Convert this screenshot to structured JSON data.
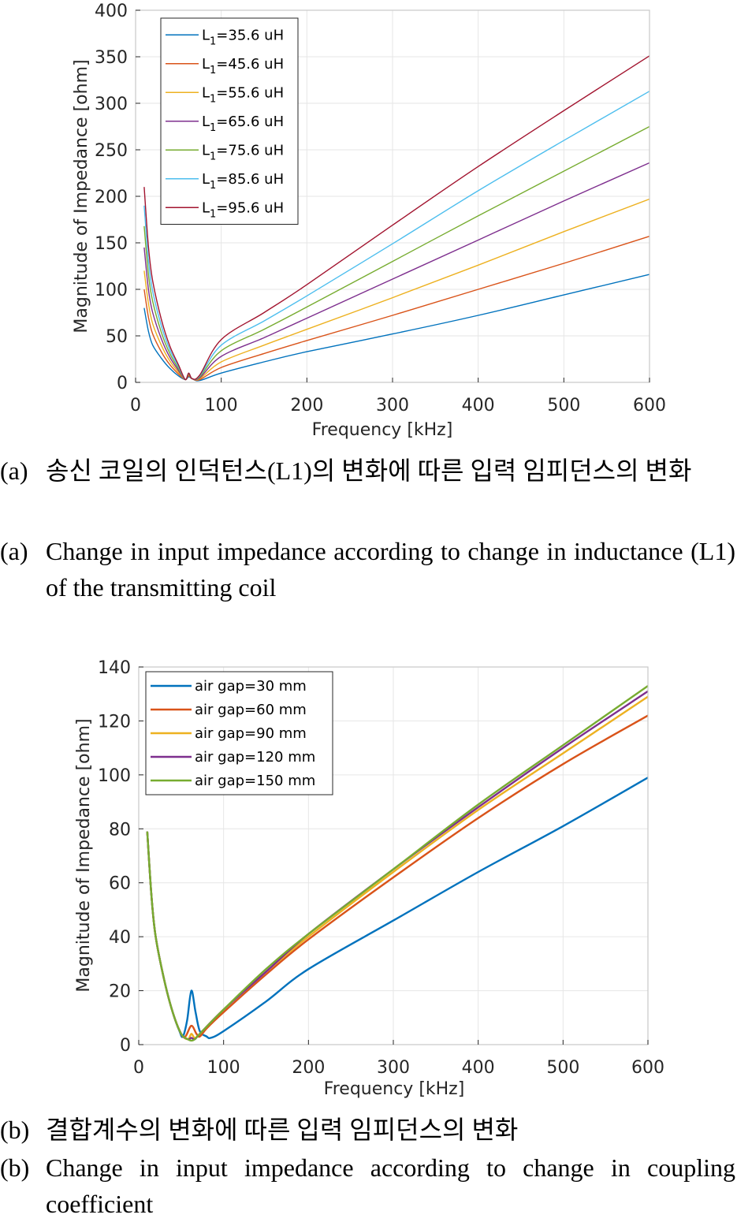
{
  "charts": [
    {
      "chart_data": {
        "type": "line",
        "xlabel": "Frequency [kHz]",
        "ylabel": "Magnitude of Impedance [ohm]",
        "xlim": [
          0,
          600
        ],
        "ylim": [
          0,
          400
        ],
        "xticks": [
          "0",
          "100",
          "200",
          "300",
          "400",
          "500",
          "600"
        ],
        "yticks": [
          "0",
          "50",
          "100",
          "150",
          "200",
          "250",
          "300",
          "350",
          "400"
        ],
        "grid": true,
        "legend_position": "top-left",
        "series": [
          {
            "name_prefix": "L",
            "name_sub": "1",
            "name_suffix": "=35.6 uH",
            "color": "#0072BD",
            "points": [
              [
                10,
                80
              ],
              [
                15,
                55
              ],
              [
                20,
                40
              ],
              [
                30,
                26
              ],
              [
                40,
                15
              ],
              [
                50,
                7
              ],
              [
                58,
                3
              ],
              [
                62,
                6
              ],
              [
                66,
                4
              ],
              [
                75,
                2
              ],
              [
                100,
                10
              ],
              [
                150,
                22
              ],
              [
                200,
                33
              ],
              [
                300,
                52
              ],
              [
                400,
                72
              ],
              [
                500,
                94
              ],
              [
                600,
                116
              ]
            ]
          },
          {
            "name_prefix": "L",
            "name_sub": "1",
            "name_suffix": "=45.6 uH",
            "color": "#D95319",
            "points": [
              [
                10,
                100
              ],
              [
                15,
                70
              ],
              [
                20,
                52
              ],
              [
                30,
                33
              ],
              [
                40,
                19
              ],
              [
                50,
                9
              ],
              [
                58,
                3
              ],
              [
                62,
                7
              ],
              [
                66,
                4
              ],
              [
                75,
                3
              ],
              [
                100,
                16
              ],
              [
                150,
                31
              ],
              [
                200,
                45
              ],
              [
                300,
                72
              ],
              [
                400,
                100
              ],
              [
                500,
                128
              ],
              [
                600,
                157
              ]
            ]
          },
          {
            "name_prefix": "L",
            "name_sub": "1",
            "name_suffix": "=55.6 uH",
            "color": "#EDB120",
            "points": [
              [
                10,
                120
              ],
              [
                15,
                85
              ],
              [
                20,
                63
              ],
              [
                30,
                40
              ],
              [
                40,
                23
              ],
              [
                50,
                11
              ],
              [
                58,
                3
              ],
              [
                62,
                8
              ],
              [
                66,
                4
              ],
              [
                75,
                4
              ],
              [
                100,
                22
              ],
              [
                150,
                40
              ],
              [
                200,
                57
              ],
              [
                300,
                91
              ],
              [
                400,
                126
              ],
              [
                500,
                162
              ],
              [
                600,
                197
              ]
            ]
          },
          {
            "name_prefix": "L",
            "name_sub": "1",
            "name_suffix": "=65.6 uH",
            "color": "#7E2F8E",
            "points": [
              [
                10,
                145
              ],
              [
                15,
                100
              ],
              [
                20,
                75
              ],
              [
                30,
                47
              ],
              [
                40,
                27
              ],
              [
                50,
                13
              ],
              [
                58,
                3
              ],
              [
                62,
                9
              ],
              [
                66,
                4
              ],
              [
                75,
                5
              ],
              [
                100,
                28
              ],
              [
                150,
                48
              ],
              [
                200,
                69
              ],
              [
                300,
                111
              ],
              [
                400,
                153
              ],
              [
                500,
                195
              ],
              [
                600,
                236
              ]
            ]
          },
          {
            "name_prefix": "L",
            "name_sub": "1",
            "name_suffix": "=75.6 uH",
            "color": "#77AC30",
            "points": [
              [
                10,
                168
              ],
              [
                15,
                116
              ],
              [
                20,
                87
              ],
              [
                30,
                54
              ],
              [
                40,
                31
              ],
              [
                50,
                15
              ],
              [
                58,
                3
              ],
              [
                62,
                9
              ],
              [
                66,
                4
              ],
              [
                75,
                6
              ],
              [
                100,
                34
              ],
              [
                150,
                57
              ],
              [
                200,
                81
              ],
              [
                300,
                130
              ],
              [
                400,
                179
              ],
              [
                500,
                227
              ],
              [
                600,
                275
              ]
            ]
          },
          {
            "name_prefix": "L",
            "name_sub": "1",
            "name_suffix": "=85.6 uH",
            "color": "#4DBEEE",
            "points": [
              [
                10,
                190
              ],
              [
                15,
                131
              ],
              [
                20,
                98
              ],
              [
                30,
                61
              ],
              [
                40,
                35
              ],
              [
                50,
                17
              ],
              [
                58,
                3
              ],
              [
                62,
                10
              ],
              [
                66,
                4
              ],
              [
                75,
                7
              ],
              [
                100,
                40
              ],
              [
                150,
                66
              ],
              [
                200,
                93
              ],
              [
                300,
                149
              ],
              [
                400,
                206
              ],
              [
                500,
                260
              ],
              [
                600,
                313
              ]
            ]
          },
          {
            "name_prefix": "L",
            "name_sub": "1",
            "name_suffix": "=95.6 uH",
            "color": "#A2142F",
            "points": [
              [
                10,
                210
              ],
              [
                15,
                146
              ],
              [
                20,
                109
              ],
              [
                30,
                68
              ],
              [
                40,
                39
              ],
              [
                50,
                19
              ],
              [
                58,
                3
              ],
              [
                62,
                10
              ],
              [
                66,
                4
              ],
              [
                75,
                8
              ],
              [
                100,
                46
              ],
              [
                150,
                75
              ],
              [
                200,
                105
              ],
              [
                300,
                169
              ],
              [
                400,
                232
              ],
              [
                500,
                292
              ],
              [
                600,
                351
              ]
            ]
          }
        ]
      },
      "caption_ko_label": "(a)",
      "caption_ko": "송신 코일의 인덕턴스(L1)의 변화에 따른 입력 임피던스의 변화",
      "caption_en_label": "(a)",
      "caption_en": "Change in input impedance according to change in inductance (L1) of the transmitting coil"
    },
    {
      "chart_data": {
        "type": "line",
        "xlabel": "Frequency [kHz]",
        "ylabel": "Magnitude of Impedance [ohm]",
        "xlim": [
          0,
          600
        ],
        "ylim": [
          0,
          140
        ],
        "xticks": [
          "0",
          "100",
          "200",
          "300",
          "400",
          "500",
          "600"
        ],
        "yticks": [
          "0",
          "20",
          "40",
          "60",
          "80",
          "100",
          "120",
          "140"
        ],
        "grid": true,
        "legend_position": "top-left",
        "series": [
          {
            "name": "air gap=30 mm",
            "color": "#0072BD",
            "points": [
              [
                10,
                79
              ],
              [
                15,
                55
              ],
              [
                20,
                40
              ],
              [
                30,
                24
              ],
              [
                40,
                12
              ],
              [
                48,
                5
              ],
              [
                52,
                3
              ],
              [
                57,
                9
              ],
              [
                62,
                20
              ],
              [
                67,
                12
              ],
              [
                72,
                5
              ],
              [
                80,
                3
              ],
              [
                85,
                2.5
              ],
              [
                100,
                5
              ],
              [
                150,
                16
              ],
              [
                200,
                28
              ],
              [
                300,
                46
              ],
              [
                400,
                64
              ],
              [
                500,
                81
              ],
              [
                600,
                99
              ]
            ]
          },
          {
            "name": "air gap=60 mm",
            "color": "#D95319",
            "points": [
              [
                10,
                79
              ],
              [
                15,
                55
              ],
              [
                20,
                40
              ],
              [
                30,
                24
              ],
              [
                40,
                12
              ],
              [
                50,
                4
              ],
              [
                55,
                3
              ],
              [
                62,
                7
              ],
              [
                68,
                4
              ],
              [
                72,
                3
              ],
              [
                80,
                6
              ],
              [
                100,
                12
              ],
              [
                150,
                26
              ],
              [
                200,
                39
              ],
              [
                300,
                62
              ],
              [
                400,
                84
              ],
              [
                500,
                104
              ],
              [
                600,
                122
              ]
            ]
          },
          {
            "name": "air gap=90 mm",
            "color": "#EDB120",
            "points": [
              [
                10,
                79
              ],
              [
                15,
                55
              ],
              [
                20,
                40
              ],
              [
                30,
                24
              ],
              [
                40,
                12
              ],
              [
                50,
                4
              ],
              [
                58,
                2
              ],
              [
                62,
                4
              ],
              [
                66,
                2.5
              ],
              [
                72,
                4
              ],
              [
                100,
                13
              ],
              [
                150,
                27
              ],
              [
                200,
                40
              ],
              [
                300,
                64
              ],
              [
                400,
                87
              ],
              [
                500,
                108
              ],
              [
                600,
                129
              ]
            ]
          },
          {
            "name": "air gap=120 mm",
            "color": "#7E2F8E",
            "points": [
              [
                10,
                79
              ],
              [
                15,
                55
              ],
              [
                20,
                40
              ],
              [
                30,
                24
              ],
              [
                40,
                12
              ],
              [
                50,
                4
              ],
              [
                58,
                2
              ],
              [
                62,
                2.5
              ],
              [
                66,
                2
              ],
              [
                72,
                4
              ],
              [
                100,
                13
              ],
              [
                150,
                27
              ],
              [
                200,
                41
              ],
              [
                300,
                65
              ],
              [
                400,
                88
              ],
              [
                500,
                110
              ],
              [
                600,
                131
              ]
            ]
          },
          {
            "name": "air gap=150 mm",
            "color": "#77AC30",
            "points": [
              [
                10,
                79
              ],
              [
                15,
                55
              ],
              [
                20,
                40
              ],
              [
                30,
                24
              ],
              [
                40,
                12
              ],
              [
                50,
                4
              ],
              [
                58,
                2
              ],
              [
                62,
                1.5
              ],
              [
                66,
                2
              ],
              [
                72,
                4
              ],
              [
                100,
                13
              ],
              [
                150,
                28
              ],
              [
                200,
                41
              ],
              [
                300,
                65
              ],
              [
                400,
                89
              ],
              [
                500,
                111
              ],
              [
                600,
                133
              ]
            ]
          }
        ]
      },
      "caption_ko_label": "(b)",
      "caption_ko": "결합계수의 변화에 따른 입력 임피던스의 변화",
      "caption_en_label": "(b)",
      "caption_en": "Change in input impedance according to change in coupling coefficient"
    }
  ]
}
